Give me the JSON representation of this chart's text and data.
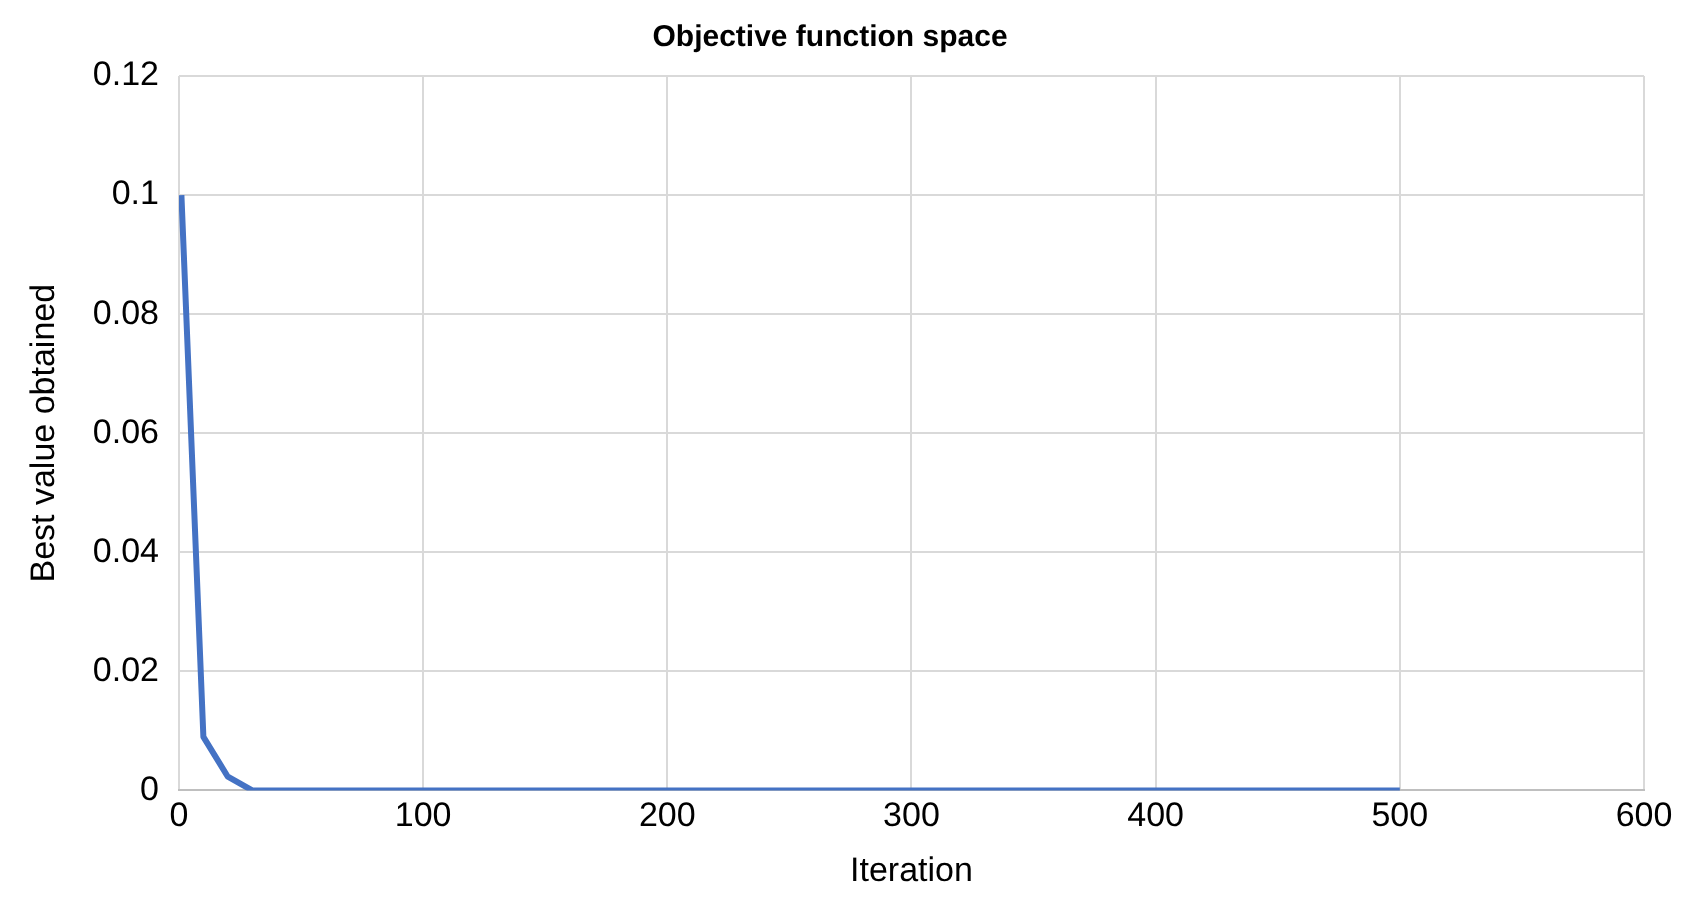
{
  "chart_data": {
    "type": "line",
    "title": "Objective function space",
    "xlabel": "Iteration",
    "ylabel": "Best value obtained",
    "x": [
      1,
      10,
      20,
      30,
      100,
      200,
      300,
      400,
      500
    ],
    "series": [
      {
        "color": "#4472c4",
        "values": [
          0.1,
          0.009,
          0.0023,
          0,
          0,
          0,
          0,
          0,
          0
        ]
      }
    ],
    "xlim": [
      0,
      600
    ],
    "xticks": [
      0,
      100,
      200,
      300,
      400,
      500,
      600
    ],
    "ylim": [
      0,
      0.12
    ],
    "yticks": [
      0,
      0.02,
      0.04,
      0.06,
      0.08,
      0.1,
      0.12
    ],
    "grid": true,
    "legend": false,
    "marker": "none",
    "line_style": "solid"
  }
}
